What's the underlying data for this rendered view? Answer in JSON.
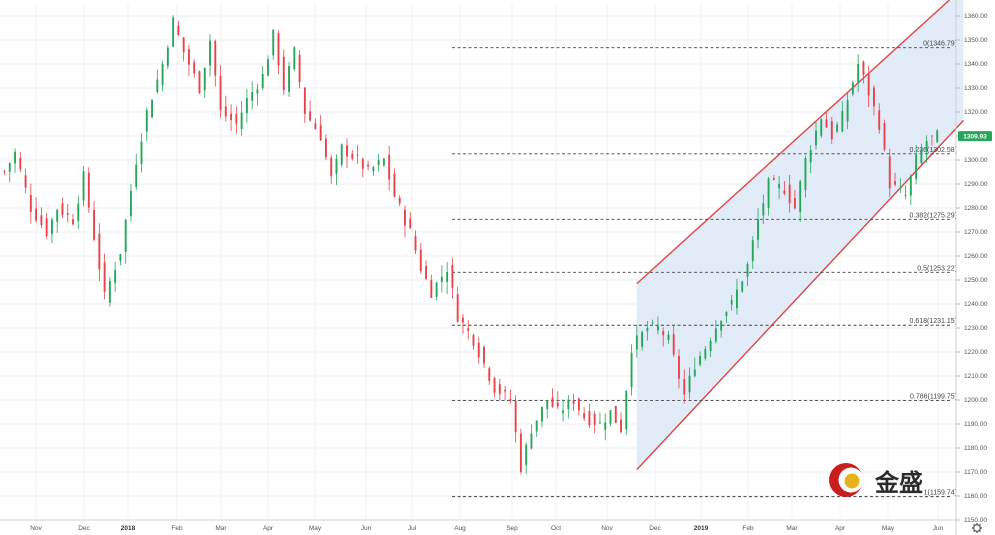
{
  "chart_data": {
    "type": "candlestick",
    "title": "",
    "xlabel": "",
    "ylabel": "",
    "ylim": [
      1150,
      1365
    ],
    "y_ticks": [
      1150,
      1160,
      1170,
      1180,
      1190,
      1200,
      1210,
      1220,
      1230,
      1240,
      1250,
      1260,
      1270,
      1280,
      1290,
      1300,
      1310,
      1320,
      1330,
      1340,
      1350,
      1360
    ],
    "y_tick_labels": [
      "1150.00",
      "1160.00",
      "1170.00",
      "1180.00",
      "1190.00",
      "1200.00",
      "1210.00",
      "1220.00",
      "1230.00",
      "1240.00",
      "1250.00",
      "1260.00",
      "1270.00",
      "1280.00",
      "1290.00",
      "1300.00",
      "1310.00",
      "1320.00",
      "1330.00",
      "1340.00",
      "1350.00",
      "1360.00"
    ],
    "x_labels": [
      {
        "text": "Nov",
        "bold": false
      },
      {
        "text": "Dec",
        "bold": false
      },
      {
        "text": "2018",
        "bold": true
      },
      {
        "text": "Feb",
        "bold": false
      },
      {
        "text": "Mar",
        "bold": false
      },
      {
        "text": "Apr",
        "bold": false
      },
      {
        "text": "May",
        "bold": false
      },
      {
        "text": "Jun",
        "bold": false
      },
      {
        "text": "Jul",
        "bold": false
      },
      {
        "text": "Aug",
        "bold": false
      },
      {
        "text": "Sep",
        "bold": false
      },
      {
        "text": "Oct",
        "bold": false
      },
      {
        "text": "Nov",
        "bold": false
      },
      {
        "text": "Dec",
        "bold": false
      },
      {
        "text": "2019",
        "bold": true
      },
      {
        "text": "Feb",
        "bold": false
      },
      {
        "text": "Mar",
        "bold": false
      },
      {
        "text": "Apr",
        "bold": false
      },
      {
        "text": "May",
        "bold": false
      },
      {
        "text": "Jun",
        "bold": false
      }
    ],
    "close_path": [
      [
        0,
        1295
      ],
      [
        2,
        1303
      ],
      [
        5,
        1280
      ],
      [
        8,
        1270
      ],
      [
        10,
        1280
      ],
      [
        13,
        1275
      ],
      [
        15,
        1293
      ],
      [
        17,
        1268
      ],
      [
        19,
        1243
      ],
      [
        22,
        1262
      ],
      [
        25,
        1300
      ],
      [
        27,
        1320
      ],
      [
        30,
        1340
      ],
      [
        32,
        1358
      ],
      [
        34,
        1345
      ],
      [
        37,
        1330
      ],
      [
        39,
        1350
      ],
      [
        41,
        1320
      ],
      [
        44,
        1315
      ],
      [
        46,
        1325
      ],
      [
        49,
        1335
      ],
      [
        51,
        1352
      ],
      [
        53,
        1330
      ],
      [
        55,
        1345
      ],
      [
        57,
        1320
      ],
      [
        60,
        1310
      ],
      [
        62,
        1292
      ],
      [
        64,
        1305
      ],
      [
        67,
        1300
      ],
      [
        69,
        1295
      ],
      [
        72,
        1300
      ],
      [
        74,
        1285
      ],
      [
        77,
        1270
      ],
      [
        79,
        1255
      ],
      [
        81,
        1245
      ],
      [
        84,
        1255
      ],
      [
        86,
        1235
      ],
      [
        89,
        1225
      ],
      [
        91,
        1215
      ],
      [
        93,
        1205
      ],
      [
        96,
        1200
      ],
      [
        98,
        1172
      ],
      [
        100,
        1188
      ],
      [
        103,
        1200
      ],
      [
        105,
        1195
      ],
      [
        108,
        1200
      ],
      [
        110,
        1193
      ],
      [
        113,
        1190
      ],
      [
        115,
        1195
      ],
      [
        117,
        1188
      ],
      [
        119,
        1222
      ],
      [
        122,
        1230
      ],
      [
        124,
        1230
      ],
      [
        126,
        1225
      ],
      [
        129,
        1202
      ],
      [
        131,
        1215
      ],
      [
        133,
        1222
      ],
      [
        136,
        1235
      ],
      [
        138,
        1240
      ],
      [
        141,
        1256
      ],
      [
        143,
        1275
      ],
      [
        145,
        1290
      ],
      [
        148,
        1288
      ],
      [
        150,
        1280
      ],
      [
        152,
        1300
      ],
      [
        155,
        1318
      ],
      [
        157,
        1310
      ],
      [
        159,
        1318
      ],
      [
        162,
        1340
      ],
      [
        164,
        1328
      ],
      [
        166,
        1315
      ],
      [
        168,
        1290
      ],
      [
        171,
        1285
      ],
      [
        173,
        1300
      ],
      [
        175,
        1308
      ],
      [
        177,
        1309.9
      ]
    ],
    "fib_levels": [
      {
        "ratio": 0,
        "price": 1346.79,
        "label": "0(1346.79)"
      },
      {
        "ratio": 0.236,
        "price": 1302.58,
        "label": "0.236(1302.58)"
      },
      {
        "ratio": 0.382,
        "price": 1275.29,
        "label": "0.382(1275.29)"
      },
      {
        "ratio": 0.5,
        "price": 1253.22,
        "label": "0.5(1253.22)"
      },
      {
        "ratio": 0.618,
        "price": 1231.15,
        "label": "0.618(1231.15)"
      },
      {
        "ratio": 0.786,
        "price": 1199.75,
        "label": "0.786(1199.75)"
      },
      {
        "ratio": 1,
        "price": 1159.74,
        "label": "1(1159.74)"
      }
    ],
    "channel": {
      "upper": [
        [
          120,
          1248.5
        ],
        [
          182,
          1372
        ]
      ],
      "lower": [
        [
          120,
          1171
        ],
        [
          182,
          1316.5
        ]
      ],
      "fill_color": "#dde9f8",
      "line_color": "#e04545"
    },
    "last_price": {
      "value": 1309.93,
      "label": "1309.93"
    },
    "up_color": "#26a65b",
    "down_color": "#e8424a",
    "grid": true
  },
  "logo": {
    "text": "金盛",
    "brand_color": "#c81e1e",
    "accent_color": "#e8b21c"
  },
  "toolbar": {
    "settings_icon": "gear-icon"
  }
}
